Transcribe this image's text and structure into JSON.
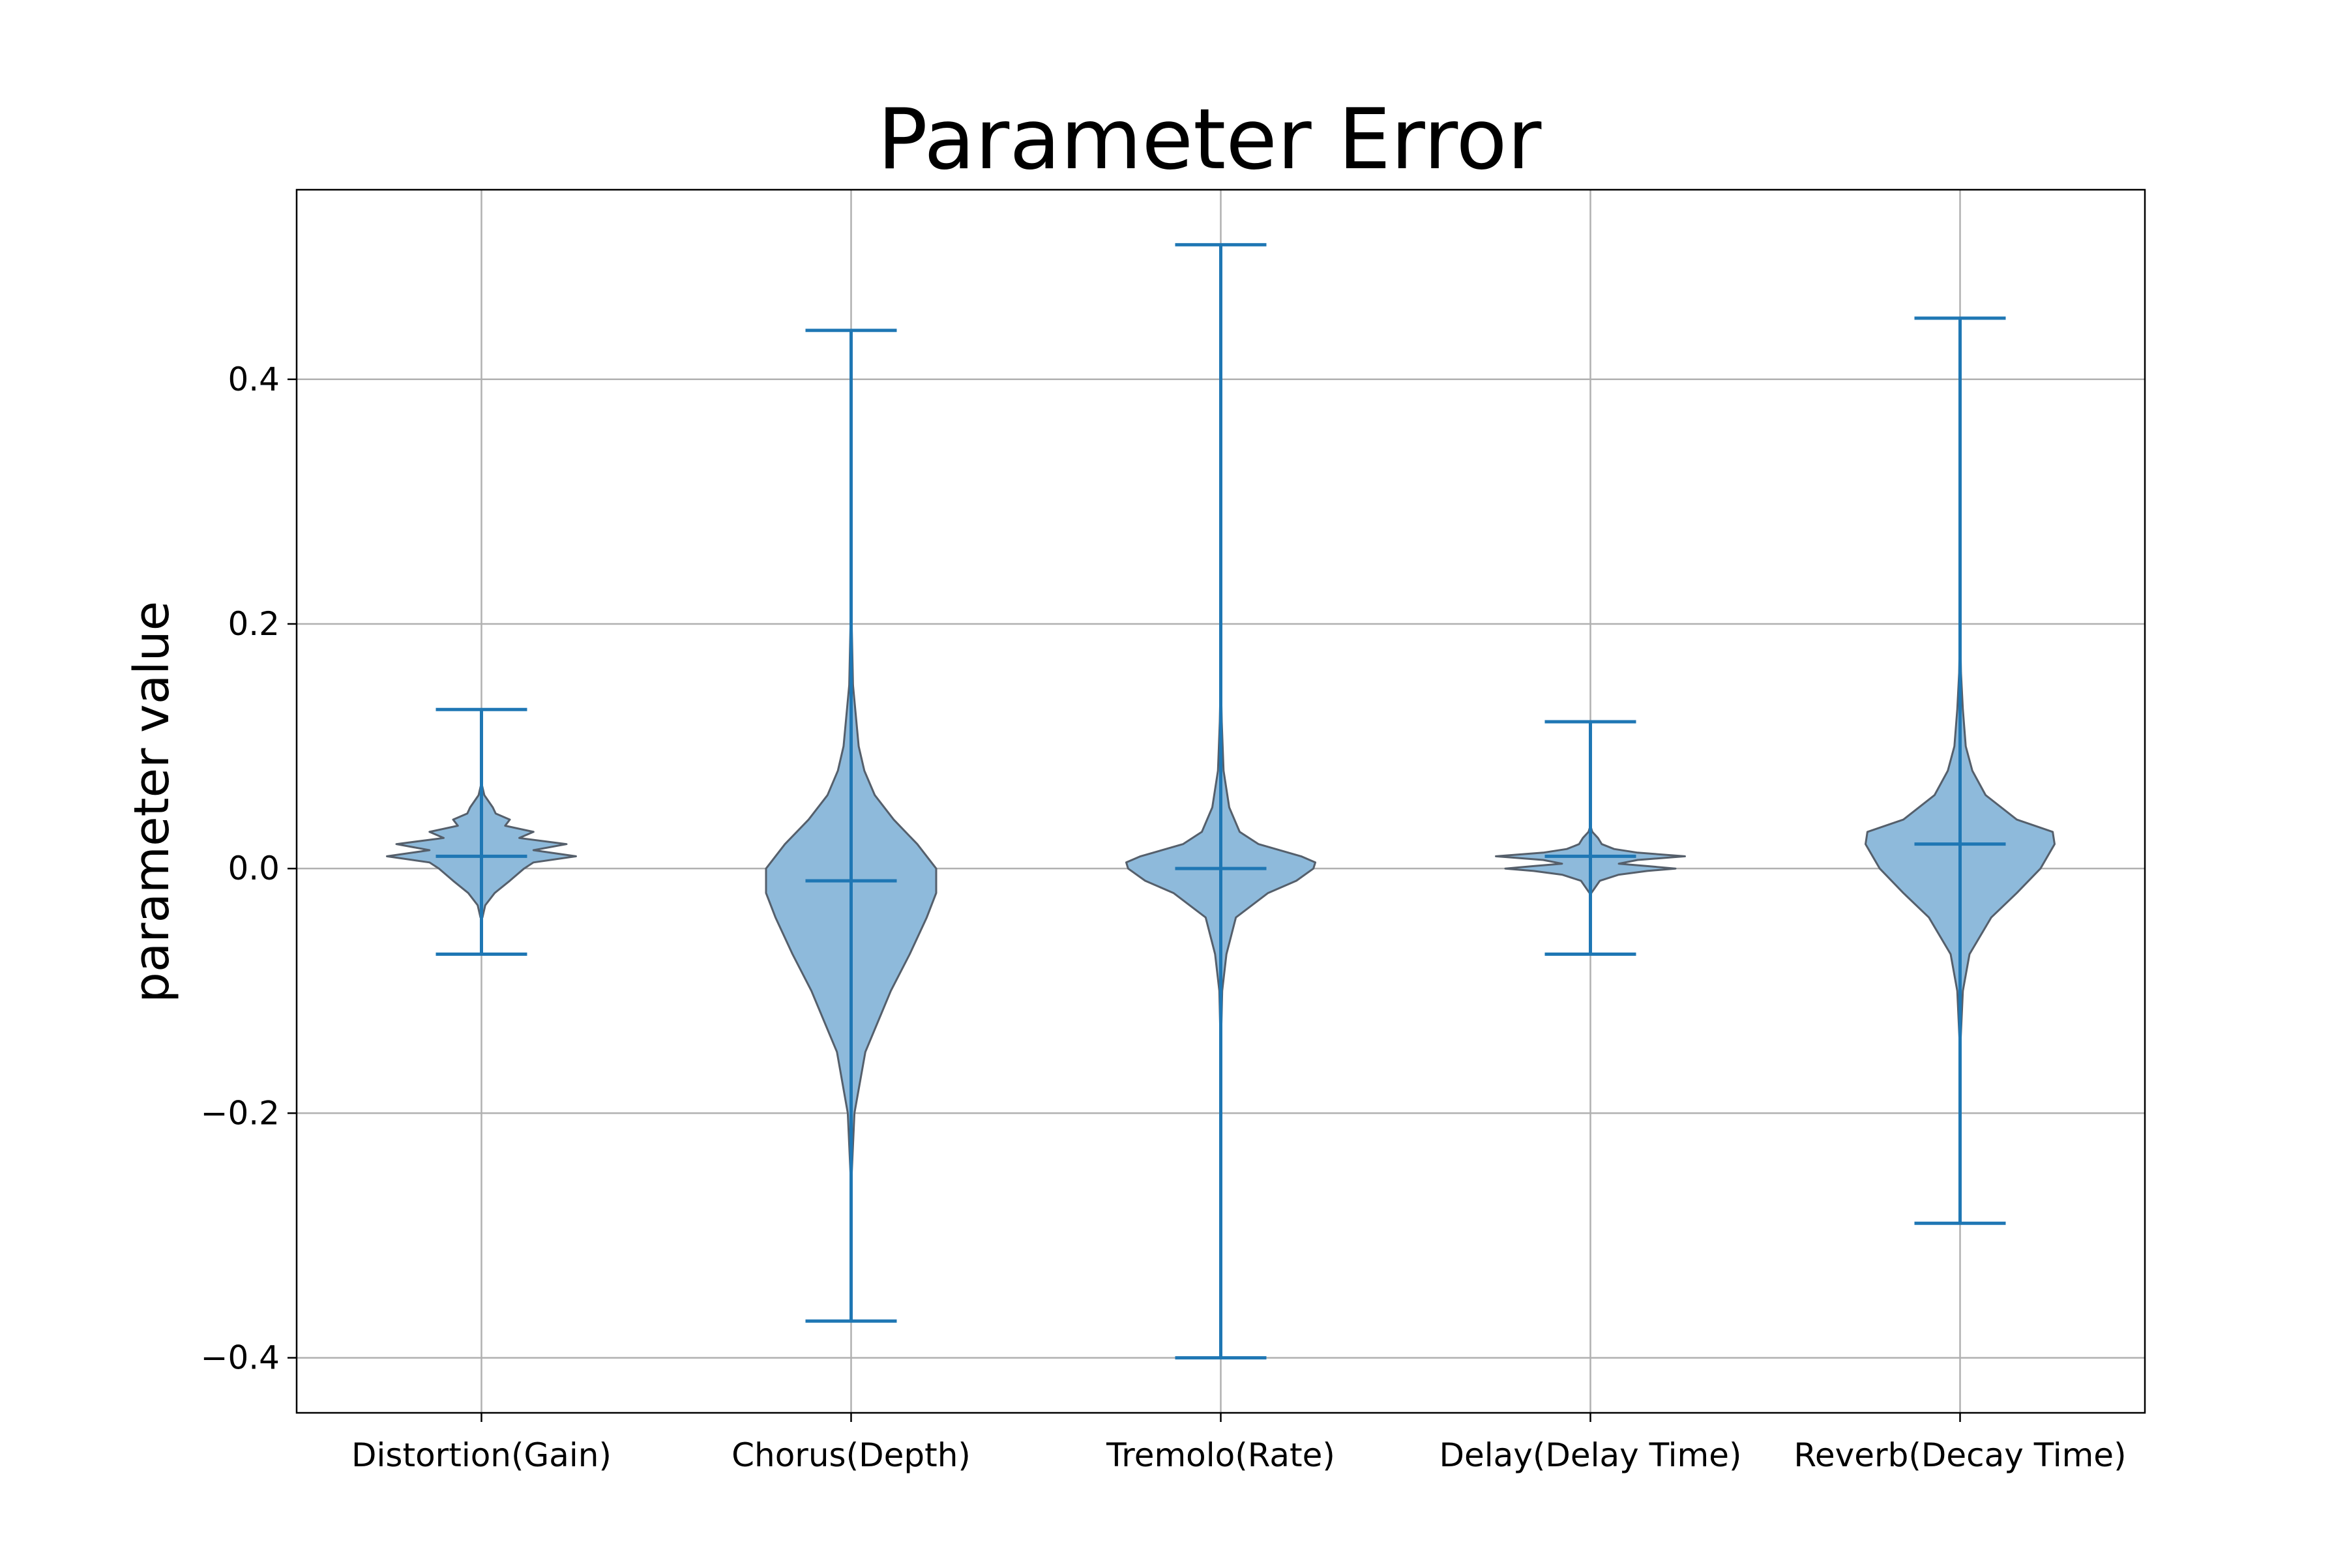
{
  "colors": {
    "violin_fill": "#8ebadb",
    "violin_edge": "#555f6b",
    "stat_lines": "#1f77b4",
    "grid": "#b0b0b0"
  },
  "chart_data": {
    "type": "violin",
    "title": "Parameter Error",
    "xlabel": "",
    "ylabel": "parameter value",
    "ylim": [
      -0.445,
      0.555
    ],
    "yticks": [
      -0.4,
      -0.2,
      0.0,
      0.2,
      0.4
    ],
    "ytick_labels": [
      "−0.4",
      "−0.2",
      "0.0",
      "0.2",
      "0.4"
    ],
    "grid": true,
    "categories": [
      "Distortion(Gain)",
      "Chorus(Depth)",
      "Tremolo(Rate)",
      "Delay(Delay Time)",
      "Reverb(Decay Time)"
    ],
    "series": [
      {
        "category": "Distortion(Gain)",
        "min": -0.07,
        "max": 0.13,
        "median": 0.01,
        "density": [
          [
            -0.04,
            0.01
          ],
          [
            -0.03,
            0.04
          ],
          [
            -0.02,
            0.14
          ],
          [
            -0.01,
            0.3
          ],
          [
            0.0,
            0.45
          ],
          [
            0.005,
            0.55
          ],
          [
            0.01,
            1.0
          ],
          [
            0.015,
            0.55
          ],
          [
            0.02,
            0.9
          ],
          [
            0.025,
            0.4
          ],
          [
            0.03,
            0.55
          ],
          [
            0.035,
            0.25
          ],
          [
            0.04,
            0.3
          ],
          [
            0.045,
            0.15
          ],
          [
            0.05,
            0.12
          ],
          [
            0.06,
            0.03
          ],
          [
            0.07,
            0.0
          ]
        ]
      },
      {
        "category": "Chorus(Depth)",
        "min": -0.37,
        "max": 0.44,
        "median": -0.01,
        "density": [
          [
            -0.37,
            0.0
          ],
          [
            -0.25,
            0.006
          ],
          [
            -0.2,
            0.035
          ],
          [
            -0.15,
            0.15
          ],
          [
            -0.1,
            0.42
          ],
          [
            -0.07,
            0.62
          ],
          [
            -0.04,
            0.8
          ],
          [
            -0.02,
            0.9
          ],
          [
            0.0,
            0.9
          ],
          [
            0.02,
            0.7
          ],
          [
            0.04,
            0.45
          ],
          [
            0.06,
            0.25
          ],
          [
            0.08,
            0.14
          ],
          [
            0.1,
            0.08
          ],
          [
            0.15,
            0.02
          ],
          [
            0.2,
            0.006
          ],
          [
            0.25,
            0.0
          ]
        ]
      },
      {
        "category": "Tremolo(Rate)",
        "min": -0.4,
        "max": 0.51,
        "median": 0.0,
        "density": [
          [
            -0.4,
            0.0
          ],
          [
            -0.15,
            0.0
          ],
          [
            -0.1,
            0.015
          ],
          [
            -0.07,
            0.06
          ],
          [
            -0.04,
            0.16
          ],
          [
            -0.02,
            0.5
          ],
          [
            -0.01,
            0.8
          ],
          [
            0.0,
            0.98
          ],
          [
            0.005,
            1.0
          ],
          [
            0.01,
            0.85
          ],
          [
            0.02,
            0.4
          ],
          [
            0.03,
            0.2
          ],
          [
            0.05,
            0.09
          ],
          [
            0.08,
            0.03
          ],
          [
            0.12,
            0.01
          ],
          [
            0.16,
            0.0
          ]
        ]
      },
      {
        "category": "Delay(Delay Time)",
        "min": -0.07,
        "max": 0.12,
        "median": 0.01,
        "density": [
          [
            -0.02,
            0.01
          ],
          [
            -0.01,
            0.1
          ],
          [
            -0.005,
            0.3
          ],
          [
            -0.002,
            0.6
          ],
          [
            0.0,
            0.9
          ],
          [
            0.002,
            0.6
          ],
          [
            0.004,
            0.3
          ],
          [
            0.007,
            0.5
          ],
          [
            0.01,
            1.0
          ],
          [
            0.013,
            0.5
          ],
          [
            0.016,
            0.25
          ],
          [
            0.02,
            0.12
          ],
          [
            0.025,
            0.08
          ],
          [
            0.03,
            0.02
          ],
          [
            0.035,
            0.0
          ]
        ]
      },
      {
        "category": "Reverb(Decay Time)",
        "min": -0.29,
        "max": 0.45,
        "median": 0.02,
        "density": [
          [
            -0.15,
            0.0
          ],
          [
            -0.1,
            0.03
          ],
          [
            -0.07,
            0.1
          ],
          [
            -0.04,
            0.33
          ],
          [
            -0.02,
            0.6
          ],
          [
            0.0,
            0.85
          ],
          [
            0.02,
            1.0
          ],
          [
            0.03,
            0.98
          ],
          [
            0.04,
            0.6
          ],
          [
            0.06,
            0.27
          ],
          [
            0.08,
            0.13
          ],
          [
            0.1,
            0.06
          ],
          [
            0.13,
            0.03
          ],
          [
            0.16,
            0.01
          ],
          [
            0.2,
            0.0
          ]
        ]
      }
    ]
  }
}
